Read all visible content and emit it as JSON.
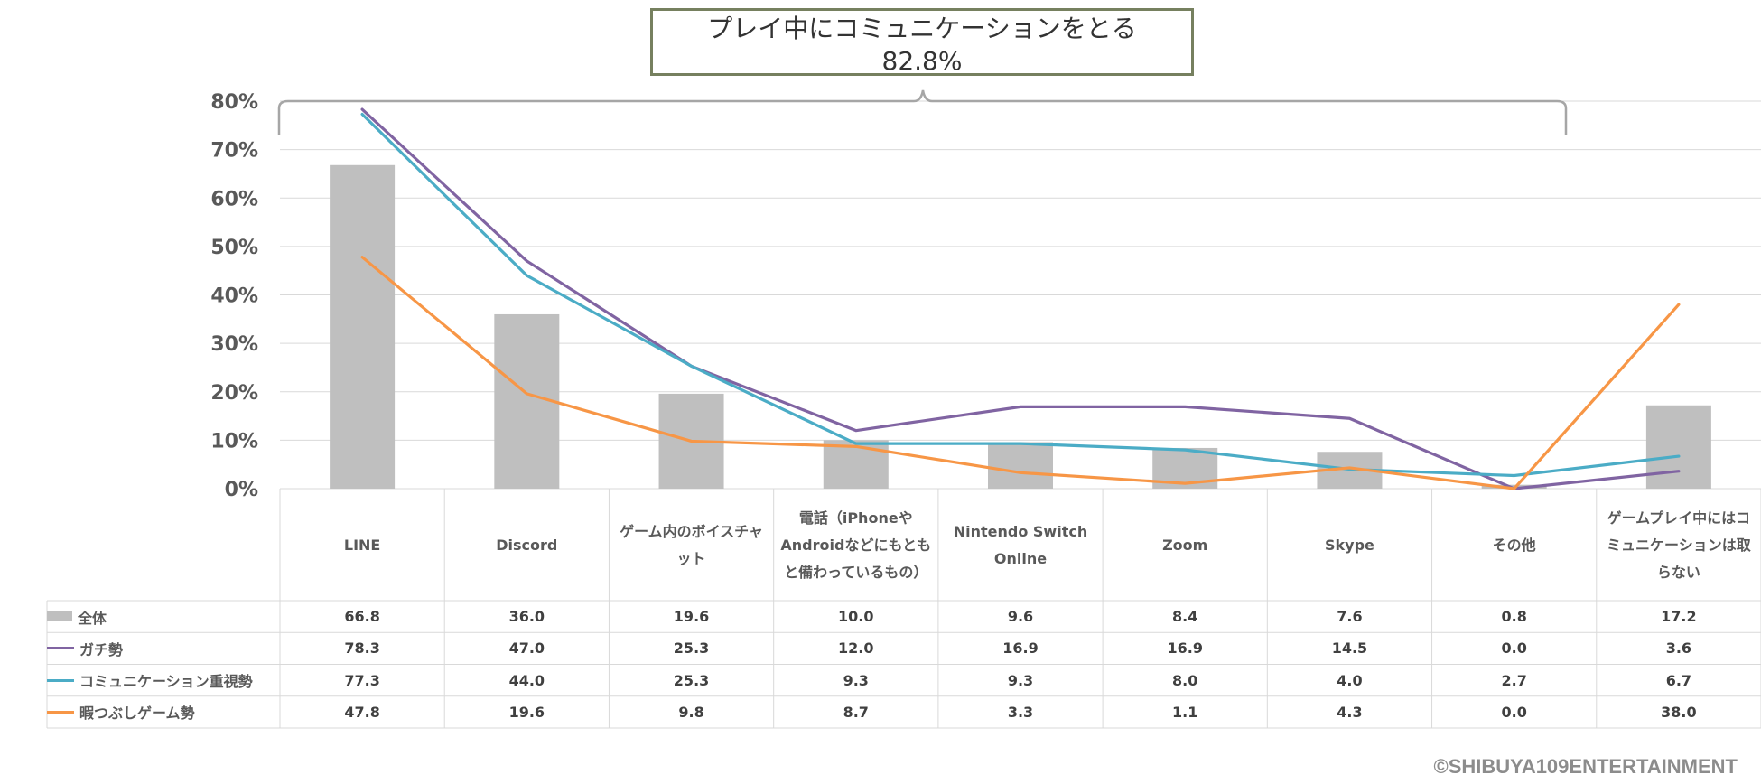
{
  "callout": {
    "line1": "プレイ中にコミュニケーションをとる",
    "line2": "82.8%"
  },
  "copyright": "©SHIBUYA109ENTERTAINMENT",
  "chart_data": {
    "type": "bar",
    "categories": [
      "LINE",
      "Discord",
      "ゲーム内のボイスチャット",
      "電話（iPhoneやAndroidなどにもともと備わっているもの）",
      "Nintendo Switch Online",
      "Zoom",
      "Skype",
      "その他",
      "ゲームプレイ中にはコミュニケーションは取らない"
    ],
    "ylim": [
      0,
      80
    ],
    "yticks": [
      "0%",
      "10%",
      "20%",
      "30%",
      "40%",
      "50%",
      "60%",
      "70%",
      "80%"
    ],
    "series": [
      {
        "name": "全体",
        "kind": "bar",
        "color": "#bfbfbf",
        "values": [
          66.8,
          36.0,
          19.6,
          10.0,
          9.6,
          8.4,
          7.6,
          0.8,
          17.2
        ],
        "labels": [
          "66.8",
          "36.0",
          "19.6",
          "10.0",
          "9.6",
          "8.4",
          "7.6",
          "0.8",
          "17.2"
        ]
      },
      {
        "name": "ガチ勢",
        "kind": "line",
        "color": "#8064a2",
        "values": [
          78.3,
          47.0,
          25.3,
          12.0,
          16.9,
          16.9,
          14.5,
          0.0,
          3.6
        ],
        "labels": [
          "78.3",
          "47.0",
          "25.3",
          "12.0",
          "16.9",
          "16.9",
          "14.5",
          "0.0",
          "3.6"
        ]
      },
      {
        "name": "コミュニケーション重視勢",
        "kind": "line",
        "color": "#4bacc6",
        "values": [
          77.3,
          44.0,
          25.3,
          9.3,
          9.3,
          8.0,
          4.0,
          2.7,
          6.7
        ],
        "labels": [
          "77.3",
          "44.0",
          "25.3",
          "9.3",
          "9.3",
          "8.0",
          "4.0",
          "2.7",
          "6.7"
        ]
      },
      {
        "name": "暇つぶしゲーム勢",
        "kind": "line",
        "color": "#f79646",
        "values": [
          47.8,
          19.6,
          9.8,
          8.7,
          3.3,
          1.1,
          4.3,
          0.0,
          38.0
        ],
        "labels": [
          "47.8",
          "19.6",
          "9.8",
          "8.7",
          "3.3",
          "1.1",
          "4.3",
          "0.0",
          "38.0"
        ]
      }
    ],
    "bracket_span": "LINE–その他"
  }
}
